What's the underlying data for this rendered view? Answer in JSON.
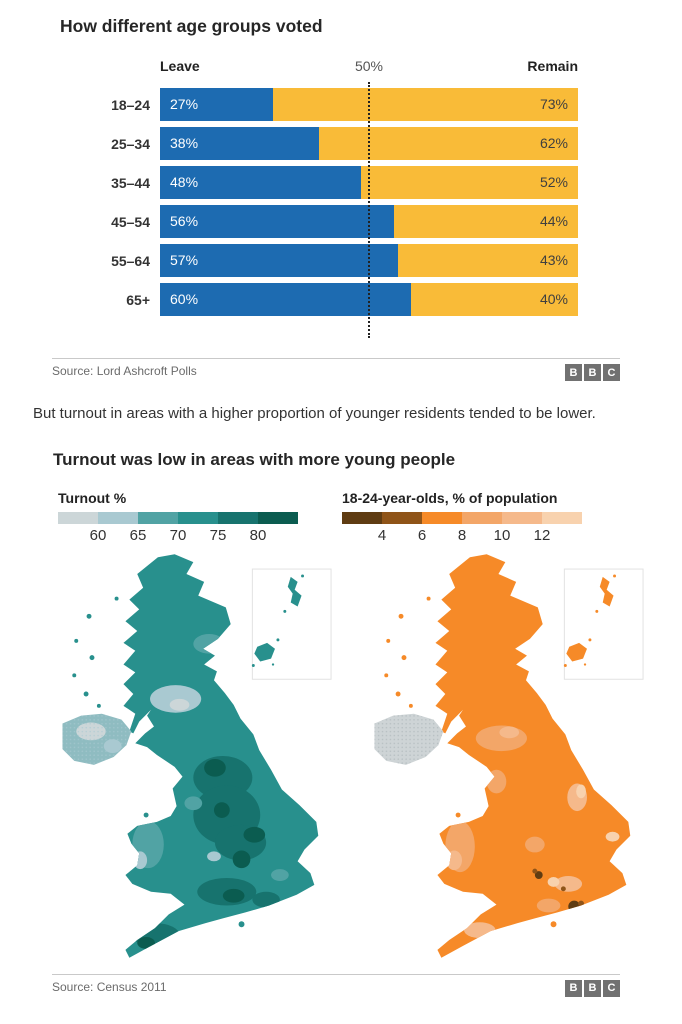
{
  "paragraph": "But turnout in areas with a higher proportion of younger residents tended to be lower.",
  "bbc_logo": {
    "letters": [
      "B",
      "B",
      "C"
    ]
  },
  "chart_data": [
    {
      "type": "bar",
      "orientation": "horizontal_stacked",
      "title": "How different age groups voted",
      "categories": [
        "18–24",
        "25–34",
        "35–44",
        "45–54",
        "55–64",
        "65+"
      ],
      "series": [
        {
          "name": "Leave",
          "values": [
            27,
            38,
            48,
            56,
            57,
            60
          ],
          "color": "#1d6bb1"
        },
        {
          "name": "Remain",
          "values": [
            73,
            62,
            52,
            44,
            43,
            40
          ],
          "color": "#f9bb38"
        }
      ],
      "value_suffix": "%",
      "xlim": [
        0,
        100
      ],
      "reference_line": {
        "value": 50,
        "label": "50%"
      },
      "source": "Source: Lord Ashcroft Polls"
    },
    {
      "type": "choropleth_map_pair",
      "title": "Turnout was low in areas with more young people",
      "maps": [
        {
          "name": "Turnout %",
          "legend_ticks": [
            60,
            65,
            70,
            75,
            80
          ],
          "scale_colors": [
            "#ccd6d8",
            "#a9c9d1",
            "#51a3a4",
            "#28908d",
            "#17736e",
            "#0b5c50"
          ],
          "visual_pattern": "Great Britain mostly mid-to-dark teal (turnout above 70%), darkest in much of England; pale grey-blue shades over Northern Ireland and the Glasgow area indicating lower turnout"
        },
        {
          "name": "18-24-year-olds, % of population",
          "legend_ticks": [
            4,
            6,
            8,
            10,
            12
          ],
          "scale_colors": [
            "#5f3c12",
            "#8f5418",
            "#f68a28",
            "#f3a668",
            "#f5b98b",
            "#f8d2ae"
          ],
          "visual_pattern": "Great Britain mostly vivid orange (6-8%), lighter patches across rural Wales, the Scottish Borders and the south coast; small dark-brown pockets of high young population around London; Northern Ireland shown grey"
        }
      ],
      "source": "Source: Census 2011"
    }
  ],
  "colors": {
    "ni_teal": "#8fbcc1",
    "ni_orange": "#ced4d6",
    "divider": "#c9c9c9",
    "bbc_gray": "#717171"
  }
}
